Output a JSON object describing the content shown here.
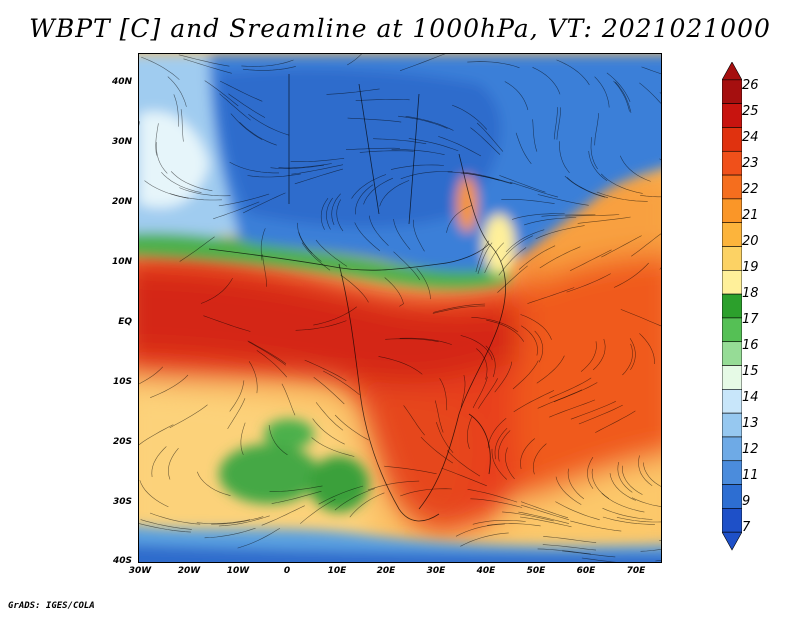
{
  "title": "WBPT [C] and Sreamline at 1000hPa, VT: 2021021000",
  "footer": "GrADS: IGES/COLA",
  "map": {
    "lat_labels": [
      "40N",
      "30N",
      "20N",
      "10N",
      "EQ",
      "10S",
      "20S",
      "30S",
      "40S"
    ],
    "lon_labels": [
      "30W",
      "20W",
      "10W",
      "0",
      "10E",
      "20E",
      "30E",
      "40E",
      "50E",
      "60E",
      "70E"
    ],
    "lat_range": [
      -40,
      44
    ],
    "lon_range": [
      -30,
      76
    ]
  },
  "colorbar": {
    "labels": [
      "26",
      "25",
      "24",
      "23",
      "22",
      "21",
      "20",
      "19",
      "18",
      "17",
      "16",
      "15",
      "14",
      "13",
      "12",
      "11",
      "9",
      "7"
    ],
    "colors": [
      "#a50f0f",
      "#c8140f",
      "#e0320f",
      "#f0501a",
      "#f56e1e",
      "#fa9628",
      "#fcb43c",
      "#fcd264",
      "#fff09a",
      "#2ca02c",
      "#55c055",
      "#96dc96",
      "#e6fae6",
      "#c8e6fa",
      "#96c8f0",
      "#6eaae6",
      "#4b8cdc",
      "#2d6ed2",
      "#1e50c8"
    ],
    "top_arrow_color": "#a50f0f",
    "bottom_arrow_color": "#1e50c8"
  }
}
